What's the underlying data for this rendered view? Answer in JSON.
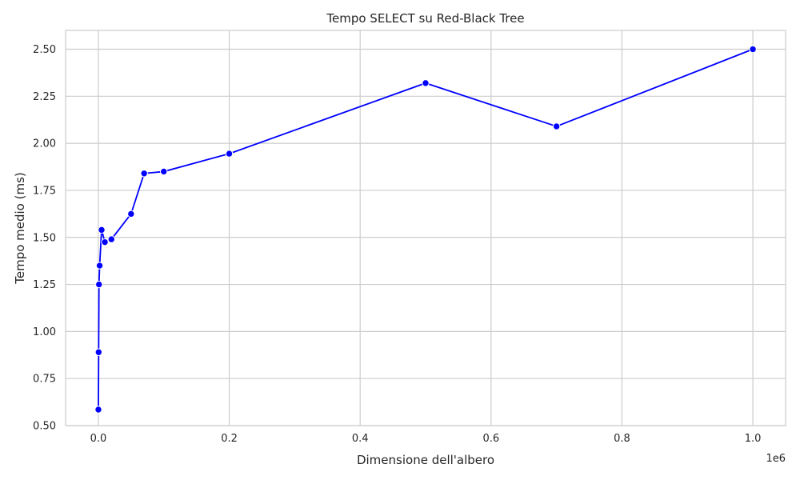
{
  "chart_data": {
    "type": "line",
    "title": "Tempo SELECT su Red-Black Tree",
    "xlabel": "Dimensione dell'albero",
    "ylabel": "Tempo medio (ms)",
    "x_offset_label": "1e6",
    "xlim": [
      -50000,
      1050000
    ],
    "ylim": [
      0.5,
      2.6
    ],
    "x_ticks": [
      0,
      200000,
      400000,
      600000,
      800000,
      1000000
    ],
    "x_tick_labels": [
      "0.0",
      "0.2",
      "0.4",
      "0.6",
      "0.8",
      "1.0"
    ],
    "y_ticks": [
      0.5,
      0.75,
      1.0,
      1.25,
      1.5,
      1.75,
      2.0,
      2.25,
      2.5
    ],
    "y_tick_labels": [
      "0.50",
      "0.75",
      "1.00",
      "1.25",
      "1.50",
      "1.75",
      "2.00",
      "2.25",
      "2.50"
    ],
    "grid": true,
    "series": [
      {
        "color": "#0000ff",
        "x": [
          100,
          500,
          1000,
          2000,
          5000,
          10000,
          20000,
          50000,
          70000,
          100000,
          200000,
          500000,
          700000,
          1000000
        ],
        "y": [
          0.585,
          0.89,
          1.25,
          1.35,
          1.54,
          1.475,
          1.49,
          1.625,
          1.84,
          1.85,
          1.945,
          2.32,
          2.09,
          2.5
        ]
      }
    ]
  }
}
